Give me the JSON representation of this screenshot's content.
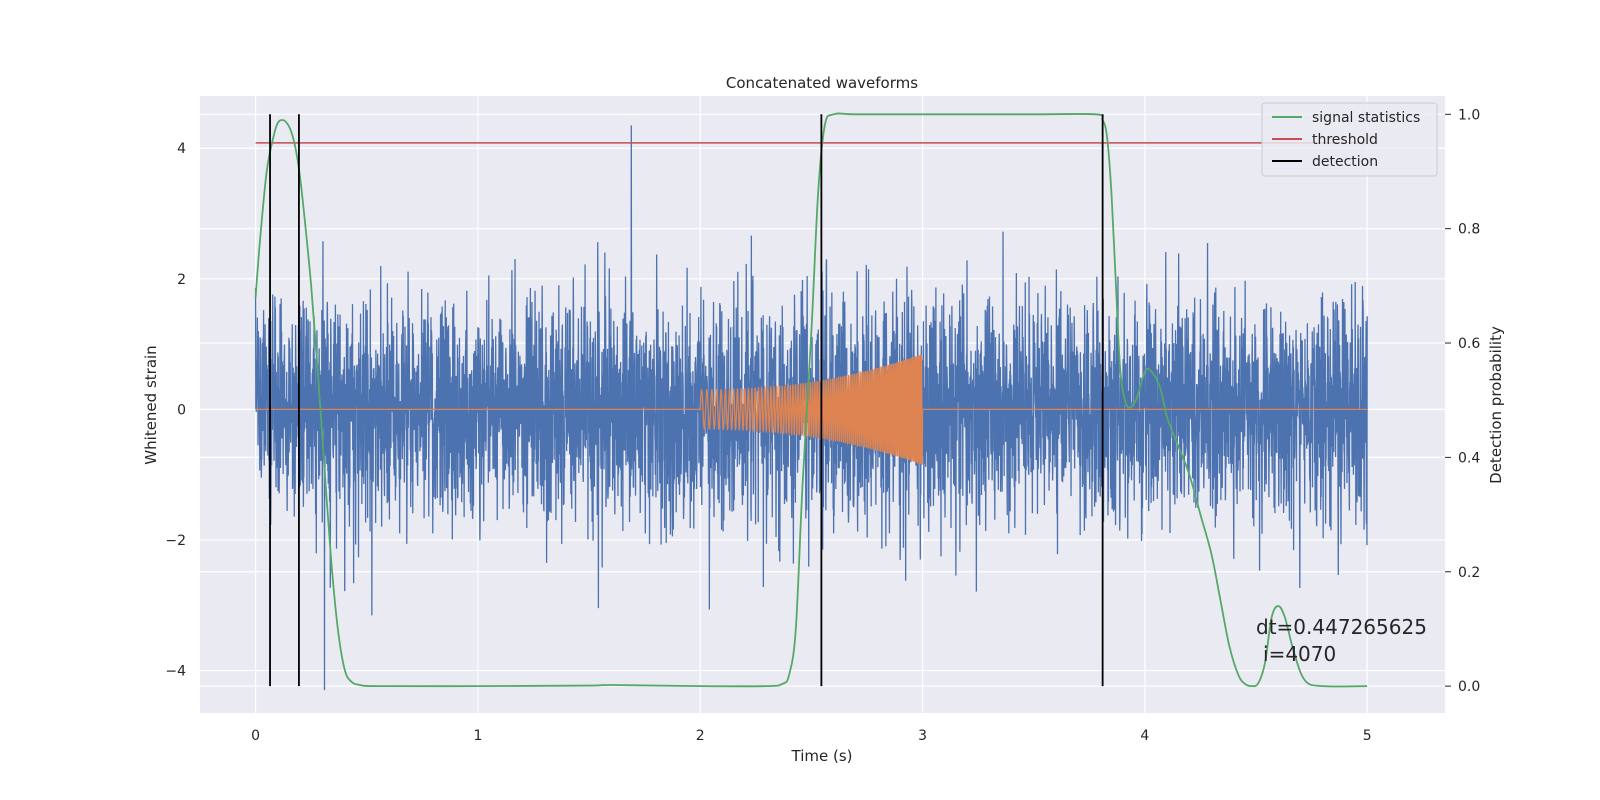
{
  "chart_data": {
    "type": "line",
    "title": "Concatenated waveforms",
    "xlabel": "Time (s)",
    "ylabel": "Whitened strain",
    "y2label": "Detection probability",
    "xlim": [
      -0.25,
      5.35
    ],
    "ylim": [
      -4.65,
      4.8
    ],
    "y2lim": [
      -0.047,
      1.032
    ],
    "xticks": [
      0,
      1,
      2,
      3,
      4,
      5
    ],
    "yticks": [
      -4,
      -2,
      0,
      2,
      4
    ],
    "y2ticks": [
      0.0,
      0.2,
      0.4,
      0.6,
      0.8,
      1.0
    ],
    "xtick_labels": [
      "0",
      "1",
      "2",
      "3",
      "4",
      "5"
    ],
    "ytick_labels": [
      "−4",
      "−2",
      "0",
      "2",
      "4"
    ],
    "y2tick_labels": [
      "0.0",
      "0.2",
      "0.4",
      "0.6",
      "0.8",
      "1.0"
    ],
    "grid": true,
    "legend_position": "top-right",
    "legend": [
      {
        "label": "signal statistics",
        "color": "#55a868"
      },
      {
        "label": "threshold",
        "color": "#c44e52"
      },
      {
        "label": "detection",
        "color": "#000000"
      }
    ],
    "series": [
      {
        "name": "",
        "kind": "noise",
        "axis": "left",
        "color": "#4c72b0",
        "x_range": [
          0,
          5
        ],
        "amplitude_std": 0.85,
        "peak_max": 4.35,
        "peak_min": -4.3
      },
      {
        "name": "",
        "kind": "chirp",
        "axis": "left",
        "color": "#dd8452",
        "x_range": [
          0,
          5
        ],
        "chirp_start": 2.0,
        "chirp_end": 3.0,
        "amplitude_start": 0.3,
        "amplitude_end": 0.85
      },
      {
        "name": "signal statistics",
        "axis": "right",
        "color": "#55a868",
        "x": [
          0.0,
          0.02,
          0.05,
          0.08,
          0.1,
          0.12,
          0.14,
          0.16,
          0.18,
          0.2,
          0.22,
          0.25,
          0.28,
          0.31,
          0.34,
          0.37,
          0.4,
          0.43,
          0.47,
          0.55,
          1.0,
          1.5,
          1.6,
          2.0,
          2.3,
          2.37,
          2.4,
          2.43,
          2.46,
          2.5,
          2.53,
          2.56,
          2.6,
          2.7,
          3.0,
          3.5,
          3.78,
          3.81,
          3.83,
          3.85,
          3.87,
          3.89,
          3.92,
          3.96,
          4.0,
          4.03,
          4.07,
          4.1,
          4.15,
          4.2,
          4.25,
          4.3,
          4.34,
          4.38,
          4.42,
          4.45,
          4.48,
          4.51,
          4.54,
          4.57,
          4.6,
          4.63,
          4.67,
          4.72,
          4.8,
          5.0
        ],
        "y": [
          0.68,
          0.78,
          0.9,
          0.96,
          0.985,
          0.99,
          0.985,
          0.97,
          0.94,
          0.89,
          0.82,
          0.7,
          0.55,
          0.38,
          0.22,
          0.1,
          0.03,
          0.008,
          0.002,
          0.0,
          0.0,
          0.001,
          0.002,
          0.0,
          0.0,
          0.004,
          0.02,
          0.1,
          0.35,
          0.62,
          0.86,
          0.98,
          1.0,
          1.0,
          1.0,
          1.0,
          1.0,
          0.99,
          0.96,
          0.86,
          0.7,
          0.55,
          0.49,
          0.5,
          0.55,
          0.55,
          0.52,
          0.47,
          0.42,
          0.37,
          0.3,
          0.23,
          0.15,
          0.07,
          0.02,
          0.004,
          0.0,
          0.005,
          0.04,
          0.12,
          0.14,
          0.12,
          0.06,
          0.01,
          0.0,
          0.0
        ]
      },
      {
        "name": "threshold",
        "axis": "right",
        "color": "#c44e52",
        "x": [
          0,
          5
        ],
        "y": [
          0.95,
          0.95
        ]
      }
    ],
    "detections": [
      0.065,
      0.195,
      2.545,
      3.81
    ],
    "annotation": {
      "text_line1": "dt=0.447265625",
      "text_line2": "i=4070",
      "x": 4.5,
      "y2": 0.1
    }
  }
}
